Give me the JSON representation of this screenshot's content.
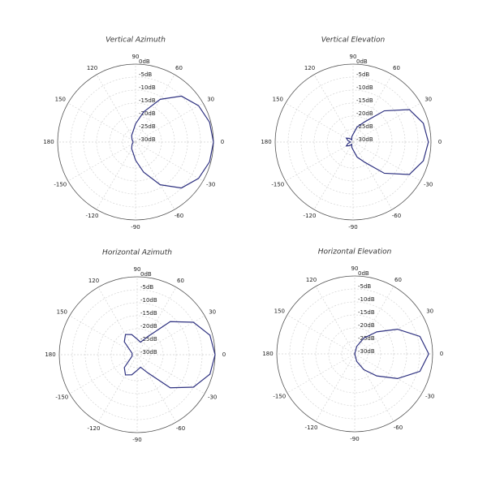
{
  "chart_data": [
    {
      "type": "polar",
      "title": "Vertical Azimuth",
      "color": "#2e3180",
      "theta": [
        0,
        15,
        30,
        45,
        60,
        75,
        90,
        105,
        120,
        135,
        150,
        165,
        180,
        195,
        210,
        225,
        240,
        255,
        270,
        285,
        300,
        315,
        330,
        345
      ],
      "values": [
        0,
        -0.5,
        -2,
        -5,
        -11,
        -18,
        -23,
        -26,
        -27,
        -28,
        -28.5,
        -29,
        -29,
        -29,
        -28.5,
        -28,
        -27,
        -26,
        -23,
        -18,
        -11,
        -5,
        -2,
        -0.5
      ],
      "rlim": [
        -30,
        0
      ],
      "rticks": [
        {
          "value": 0,
          "label": "0dB"
        },
        {
          "value": -5,
          "label": "-5dB"
        },
        {
          "value": -10,
          "label": "-10dB"
        },
        {
          "value": -15,
          "label": "-15dB"
        },
        {
          "value": -20,
          "label": "-20dB"
        },
        {
          "value": -25,
          "label": "-25dB"
        },
        {
          "value": -30,
          "label": "-30dB"
        }
      ],
      "thetaticks": [
        0,
        30,
        60,
        90,
        120,
        150,
        180,
        -150,
        -120,
        -90,
        -60,
        -30
      ],
      "grid": true
    },
    {
      "type": "polar",
      "title": "Vertical Elevation",
      "color": "#2e3180",
      "theta": [
        0,
        15,
        30,
        45,
        60,
        75,
        90,
        105,
        120,
        135,
        150,
        165,
        180,
        195,
        210,
        225,
        240,
        255,
        270,
        285,
        300,
        315,
        330,
        345
      ],
      "values": [
        -1,
        -2,
        -5,
        -13,
        -21,
        -24,
        -27,
        -28,
        -29,
        -28,
        -27,
        -28,
        -29,
        -28,
        -27,
        -28,
        -29,
        -28,
        -27,
        -24,
        -21,
        -13,
        -5,
        -2
      ],
      "rlim": [
        -30,
        0
      ],
      "rticks": [
        {
          "value": 0,
          "label": "0dB"
        },
        {
          "value": -5,
          "label": "-5dB"
        },
        {
          "value": -10,
          "label": "-10dB"
        },
        {
          "value": -15,
          "label": "-15dB"
        },
        {
          "value": -20,
          "label": "-20dB"
        },
        {
          "value": -25,
          "label": "-25dB"
        },
        {
          "value": -30,
          "label": "-30dB"
        }
      ],
      "thetaticks": [
        0,
        30,
        60,
        90,
        120,
        150,
        180,
        -150,
        -120,
        -90,
        -60,
        -30
      ],
      "grid": true
    },
    {
      "type": "polar",
      "title": "Horizontal Azimuth",
      "color": "#2e3180",
      "theta": [
        0,
        15,
        30,
        45,
        60,
        75,
        90,
        105,
        120,
        135,
        150,
        165,
        180,
        195,
        210,
        225,
        240,
        255,
        270,
        285,
        300,
        315,
        330,
        345
      ],
      "values": [
        0,
        -1,
        -5,
        -12,
        -22,
        -25,
        -24,
        -22,
        -21,
        -23,
        -27,
        -28,
        -28,
        -28,
        -27,
        -23,
        -21,
        -22,
        -24,
        -25,
        -22,
        -12,
        -5,
        -1
      ],
      "rlim": [
        -30,
        0
      ],
      "rticks": [
        {
          "value": 0,
          "label": "0dB"
        },
        {
          "value": -5,
          "label": "-5dB"
        },
        {
          "value": -10,
          "label": "-10dB"
        },
        {
          "value": -15,
          "label": "-15dB"
        },
        {
          "value": -20,
          "label": "-20dB"
        },
        {
          "value": -25,
          "label": "-25dB"
        },
        {
          "value": -30,
          "label": "-30dB"
        }
      ],
      "thetaticks": [
        0,
        30,
        60,
        90,
        120,
        150,
        180,
        -150,
        -120,
        -90,
        -60,
        -30
      ],
      "grid": true
    },
    {
      "type": "polar",
      "title": "Horizontal Elevation",
      "color": "#2e3180",
      "theta": [
        0,
        15,
        30,
        45,
        60,
        75,
        90,
        105,
        120,
        135,
        150,
        165,
        180,
        195,
        210,
        225,
        240,
        255,
        270,
        285,
        300,
        315,
        330,
        345
      ],
      "values": [
        -1.5,
        -4,
        -11,
        -18,
        -23,
        -27,
        -30,
        -30,
        -30,
        -30,
        -30,
        -30,
        -30,
        -30,
        -30,
        -30,
        -30,
        -30,
        -30,
        -27,
        -23,
        -18,
        -11,
        -4
      ],
      "rlim": [
        -30,
        0
      ],
      "rticks": [
        {
          "value": 0,
          "label": "0dB"
        },
        {
          "value": -5,
          "label": "-5dB"
        },
        {
          "value": -10,
          "label": "-10dB"
        },
        {
          "value": -15,
          "label": "-15dB"
        },
        {
          "value": -20,
          "label": "-20dB"
        },
        {
          "value": -25,
          "label": "-25dB"
        },
        {
          "value": -30,
          "label": "-30dB"
        }
      ],
      "thetaticks": [
        0,
        30,
        60,
        90,
        120,
        150,
        180,
        -150,
        -120,
        -90,
        -60,
        -30
      ],
      "grid": true
    }
  ]
}
